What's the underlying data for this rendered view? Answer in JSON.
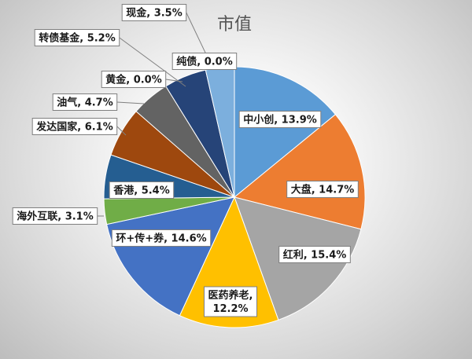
{
  "chart_data": {
    "type": "pie",
    "title": "市值",
    "slices": [
      {
        "name": "中小创",
        "value": 13.9,
        "label": "中小创, 13.9%",
        "color": "#5b9bd5"
      },
      {
        "name": "大盘",
        "value": 14.7,
        "label": "大盘, 14.7%",
        "color": "#ed7d31"
      },
      {
        "name": "红利",
        "value": 15.4,
        "label": "红利, 15.4%",
        "color": "#a5a5a5"
      },
      {
        "name": "医药养老",
        "value": 12.2,
        "label": "医药养老, 12.2%",
        "color": "#ffc000"
      },
      {
        "name": "环+传+券",
        "value": 14.6,
        "label": "环+传+券, 14.6%",
        "color": "#4472c4"
      },
      {
        "name": "海外互联",
        "value": 3.1,
        "label": "海外互联, 3.1%",
        "color": "#70ad47"
      },
      {
        "name": "香港",
        "value": 5.4,
        "label": "香港, 5.4%",
        "color": "#255e91"
      },
      {
        "name": "发达国家",
        "value": 6.1,
        "label": "发达国家, 6.1%",
        "color": "#9e480e"
      },
      {
        "name": "油气",
        "value": 4.7,
        "label": "油气, 4.7%",
        "color": "#636363"
      },
      {
        "name": "黄金",
        "value": 0.0,
        "label": "黄金, 0.0%",
        "color": "#997300"
      },
      {
        "name": "转债基金",
        "value": 5.2,
        "label": "转债基金, 5.2%",
        "color": "#264478"
      },
      {
        "name": "纯债",
        "value": 0.0,
        "label": "纯债, 0.0%",
        "color": "#43682b"
      },
      {
        "name": "现金",
        "value": 3.5,
        "label": "现金, 3.5%",
        "color": "#7cafdd"
      }
    ]
  }
}
